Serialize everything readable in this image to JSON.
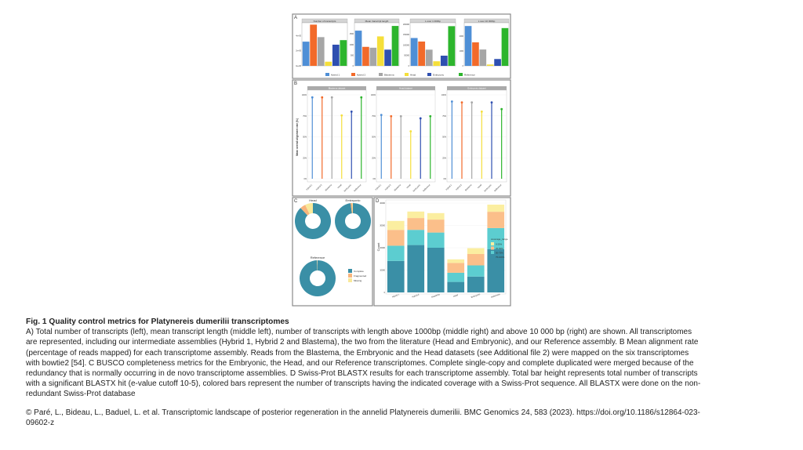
{
  "caption": {
    "title": "Fig. 1 Quality control metrics for Platynereis dumerilii transcriptomes",
    "lines": [
      "A) Total number of transcripts (left), mean transcript length (middle left), number of transcripts with length above 1000bp (middle right) and above 10 000 bp (right) are shown. All transcriptomes",
      "are represented, including our intermediate assemblies (Hybrid 1, Hybrid 2 and Blastema), the two from the literature (Head and Embryonic), and our Reference assembly. B Mean alignment rate",
      "(percentage of reads mapped) for each transcriptome assembly. Reads from the Blastema, the Embryonic and the Head datasets (see Additional file 2) were mapped on the six transcriptomes",
      "with bowtie2 [54]. C BUSCO completeness metrics for the Embryonic, the Head, and our Reference transcriptomes. Complete single-copy and complete duplicated were merged because of the",
      "redundancy that is normally occurring in de novo transcriptome assemblies. D Swiss-Prot BLASTX results for each transcriptome assembly. Total bar height represents total number of transcripts",
      "with a significant BLASTX hit (e-value cutoff 10-5), colored bars represent the number of transcripts having the indicated coverage with a Swiss-Prot sequence. All BLASTX were done on the non-",
      "redundant Swiss-Prot database"
    ]
  },
  "citation": {
    "lines": [
      "© Paré, L., Bideau, L., Baduel, L. et al. Transcriptomic landscape of posterior regeneration in the annelid Platynereis dumerilii. BMC Genomics 24, 583 (2023). https://doi.org/10.1186/s12864-023-",
      "09602-z"
    ]
  },
  "assemblies": [
    "Hybrid 1",
    "Hybrid 2",
    "Blastema",
    "Head",
    "Embryonic",
    "Reference"
  ],
  "assembly_colors": [
    "#4f8fd6",
    "#f26a2a",
    "#a6a6a6",
    "#f5df3a",
    "#2e4fb0",
    "#2db52d"
  ],
  "chart_data": [
    {
      "panel": "A",
      "type": "bar",
      "subplots": [
        {
          "title": "Number of transcripts",
          "ylim": [
            0,
            570000
          ],
          "yticks": [
            0,
            200000,
            400000
          ],
          "ytick_labels": [
            "0e+00",
            "2e+05",
            "4e+05"
          ],
          "values": [
            320000,
            545000,
            380000,
            55000,
            280000,
            340000
          ]
        },
        {
          "title": "Mean transcript length",
          "ylim": [
            0,
            2020
          ],
          "yticks": [
            0,
            500,
            1000,
            1500
          ],
          "ytick_labels": [
            "0",
            "500",
            "1000",
            "1500"
          ],
          "values": [
            1650,
            890,
            850,
            1380,
            760,
            1870
          ]
        },
        {
          "title": "L over 1 000bp",
          "ylim": [
            0,
            207500
          ],
          "yticks": [
            0,
            50000,
            100000,
            150000,
            200000
          ],
          "ytick_labels": [
            "0",
            "50000",
            "100000",
            "150000",
            "200000"
          ],
          "values": [
            134000,
            117000,
            78000,
            22000,
            49000,
            191000
          ]
        },
        {
          "title": "L over 10 000bp",
          "ylim": [
            0,
            2900
          ],
          "yticks": [
            0,
            1000,
            2000
          ],
          "ytick_labels": [
            "0",
            "1000",
            "2000"
          ],
          "values": [
            2680,
            1580,
            1100,
            90,
            460,
            2540
          ]
        }
      ]
    },
    {
      "panel": "B",
      "type": "lollipop",
      "ylabel": "Mean overall alignment rate (%)",
      "ylim": [
        0,
        100
      ],
      "ytick_labels": [
        "0%",
        "25%",
        "50%",
        "75%",
        "100%"
      ],
      "subplots": [
        {
          "title": "Blastema dataset",
          "values": [
            97,
            97,
            97,
            75.5,
            80,
            97
          ]
        },
        {
          "title": "Head dataset",
          "values": [
            76,
            74.5,
            74.5,
            56.5,
            72,
            74.5
          ]
        },
        {
          "title": "Embryonic dataset",
          "values": [
            92,
            91,
            91,
            80,
            91,
            83
          ]
        }
      ]
    },
    {
      "panel": "C",
      "type": "pie",
      "categories": [
        "Complete",
        "Fragmented",
        "Missing"
      ],
      "colors": [
        "#3a8fa6",
        "#f8b57c",
        "#f9e99a"
      ],
      "donuts": [
        {
          "title": "Head",
          "values": [
            88,
            5,
            7
          ]
        },
        {
          "title": "Embryonic",
          "values": [
            98,
            1.5,
            0.5
          ]
        },
        {
          "title": "Reference",
          "values": [
            99.5,
            0.3,
            0.2
          ]
        }
      ]
    },
    {
      "panel": "D",
      "type": "bar",
      "stacked": true,
      "ylabel": "Count",
      "ylim": [
        0,
        40000
      ],
      "yticks": [
        0,
        10000,
        20000,
        30000,
        40000
      ],
      "ytick_labels": [
        "0",
        "10000",
        "20000",
        "30000",
        "40000"
      ],
      "legend_title": "coverage_range",
      "legend_position": "right",
      "series": [
        {
          "name": "75-100%",
          "color": "#3a8fa6",
          "values": [
            14100,
            21200,
            20000,
            4700,
            7100,
            19300
          ]
        },
        {
          "name": "50-75%",
          "color": "#5ccdd0",
          "values": [
            6800,
            6800,
            6800,
            4100,
            5000,
            9500
          ]
        },
        {
          "name": "25-50%",
          "color": "#fbbf8a",
          "values": [
            7100,
            5300,
            5800,
            4400,
            5100,
            7300
          ]
        },
        {
          "name": "0-25%",
          "color": "#fbeea0",
          "values": [
            4000,
            2900,
            2900,
            1600,
            2600,
            3200
          ]
        }
      ],
      "legend_order": [
        "0-25%",
        "25-50%",
        "50-75%",
        "75-100%"
      ]
    }
  ],
  "panel_letters": [
    "A",
    "B",
    "C",
    "D"
  ]
}
